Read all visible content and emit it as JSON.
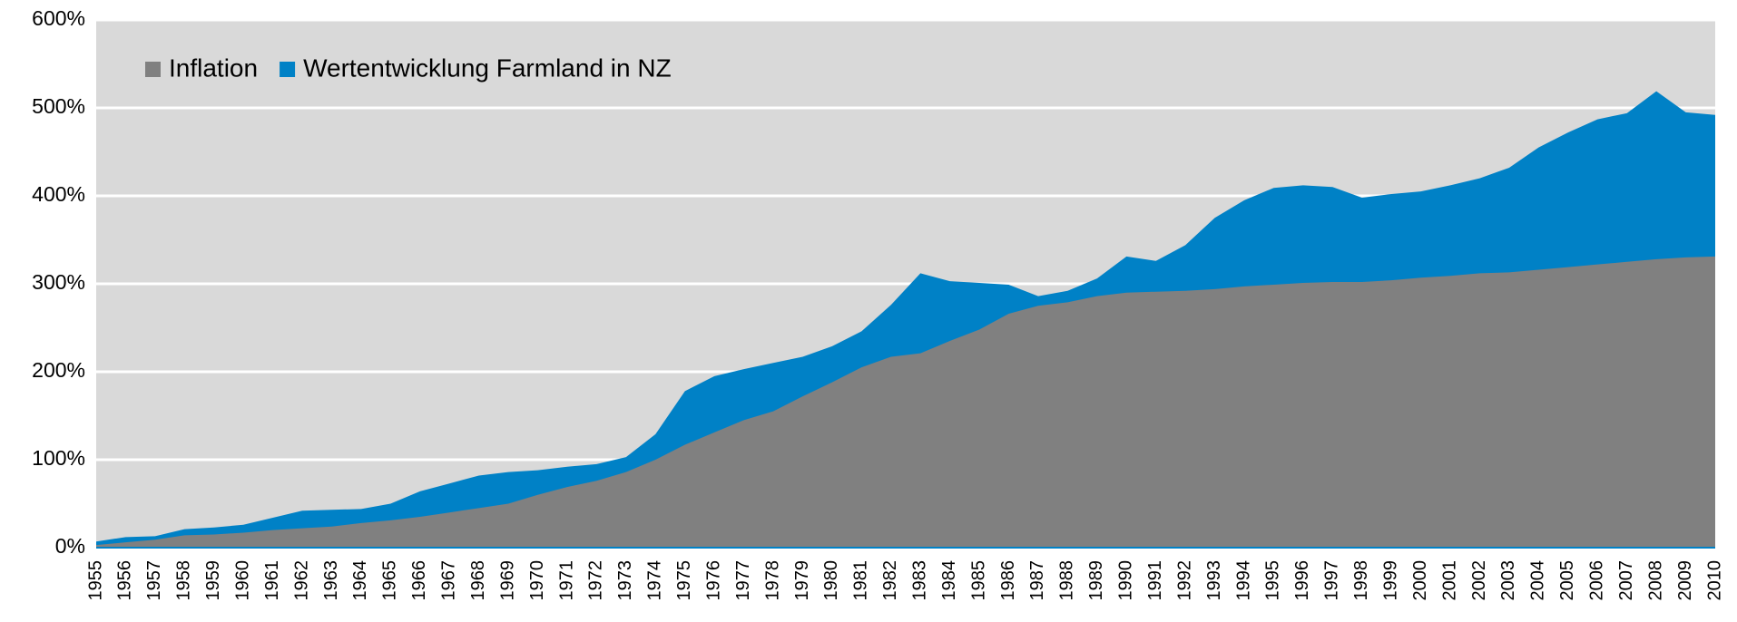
{
  "chart_data": {
    "type": "area",
    "categories": [
      "1955",
      "1956",
      "1957",
      "1958",
      "1959",
      "1960",
      "1961",
      "1962",
      "1963",
      "1964",
      "1965",
      "1966",
      "1967",
      "1968",
      "1969",
      "1970",
      "1971",
      "1972",
      "1973",
      "1974",
      "1975",
      "1976",
      "1977",
      "1978",
      "1979",
      "1980",
      "1981",
      "1982",
      "1983",
      "1984",
      "1985",
      "1986",
      "1987",
      "1988",
      "1989",
      "1990",
      "1991",
      "1992",
      "1993",
      "1994",
      "1995",
      "1996",
      "1997",
      "1998",
      "1999",
      "2000",
      "2001",
      "2002",
      "2003",
      "2004",
      "2005",
      "2006",
      "2007",
      "2008",
      "2009",
      "2010"
    ],
    "series": [
      {
        "name": "Inflation",
        "color": "#808080",
        "values": [
          3,
          6,
          9,
          14,
          15,
          17,
          20,
          22,
          24,
          28,
          31,
          35,
          40,
          45,
          50,
          60,
          69,
          76,
          86,
          100,
          117,
          131,
          145,
          155,
          172,
          188,
          205,
          217,
          221,
          235,
          248,
          266,
          275,
          279,
          286,
          290,
          291,
          292,
          294,
          297,
          299,
          301,
          302,
          302,
          304,
          307,
          309,
          312,
          313,
          316,
          319,
          322,
          325,
          328,
          330,
          331
        ]
      },
      {
        "name": "Wertentwicklung Farmland in NZ",
        "color": "#0081c6",
        "values": [
          7,
          12,
          13,
          21,
          23,
          26,
          34,
          42,
          43,
          44,
          50,
          64,
          73,
          82,
          86,
          88,
          92,
          95,
          103,
          129,
          178,
          195,
          203,
          210,
          217,
          229,
          246,
          276,
          312,
          303,
          301,
          299,
          286,
          292,
          306,
          331,
          326,
          344,
          375,
          395,
          409,
          412,
          410,
          398,
          402,
          405,
          412,
          420,
          432,
          455,
          472,
          487,
          494,
          519,
          495,
          492
        ]
      }
    ],
    "ylim": [
      0,
      600
    ],
    "yticks": [
      {
        "value": 0,
        "label": "0%"
      },
      {
        "value": 100,
        "label": "100%"
      },
      {
        "value": 200,
        "label": "200%"
      },
      {
        "value": 300,
        "label": "300%"
      },
      {
        "value": 400,
        "label": "400%"
      },
      {
        "value": 500,
        "label": "500%"
      },
      {
        "value": 600,
        "label": "600%"
      }
    ],
    "grid": true,
    "legend": "top-left"
  }
}
